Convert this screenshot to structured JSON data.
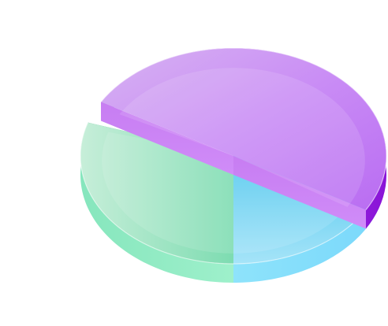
{
  "chart_data": {
    "type": "pie",
    "style": "3d-exploded",
    "title": "",
    "slices": [
      {
        "value": 50,
        "color": "#b86cf0"
      },
      {
        "value": 20,
        "color": "#6fd4f7"
      },
      {
        "value": 30,
        "color": "#8fe8c1"
      }
    ],
    "legend": "none",
    "labels": "none"
  }
}
